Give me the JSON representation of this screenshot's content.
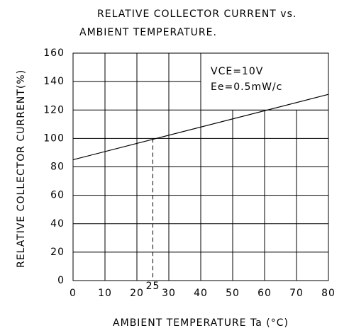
{
  "chart_data": {
    "type": "line",
    "title": [
      "RELATIVE COLLECTOR CURRENT vs.",
      "AMBIENT TEMPERATURE."
    ],
    "xlabel": "AMBIENT TEMPERATURE Ta (°C)",
    "ylabel": "RELATIVE COLLECTOR CURRENT(%)",
    "x": [
      0,
      80
    ],
    "series": [
      {
        "name": "Relative collector current",
        "color": "#000000",
        "values": [
          85,
          131
        ]
      }
    ],
    "xlim": [
      0,
      80
    ],
    "xticks": [
      0,
      10,
      20,
      30,
      40,
      50,
      60,
      70,
      80
    ],
    "ylim": [
      0,
      160
    ],
    "yticks": [
      0,
      20,
      40,
      60,
      80,
      100,
      120,
      140,
      160
    ],
    "grid": true,
    "conditions": [
      "VCE=10V",
      "Ee=0.5mW/c"
    ],
    "reference": {
      "x": 25,
      "y": 100,
      "label": "25"
    }
  }
}
